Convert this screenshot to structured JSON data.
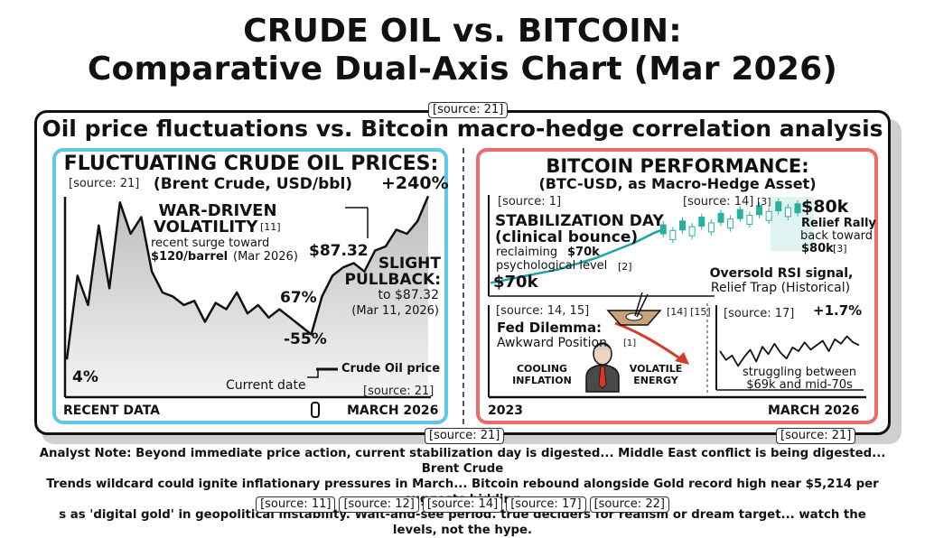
{
  "header": {
    "title_line1": "CRUDE OIL vs. BITCOIN:",
    "title_line2": "Comparative Dual-Axis Chart (Mar 2026)",
    "source_top": "[source: 21]",
    "subtitle": "Oil price fluctuations vs. Bitcoin macro-hedge correlation analysis"
  },
  "left_panel": {
    "heading": "FLUCTUATING CRUDE OIL PRICES:",
    "subheading": "(Brent Crude, USD/bbl)",
    "source_tl": "[source: 21]",
    "pct_top": "+240%",
    "war_title_1": "WAR-DRIVEN",
    "war_title_2": "VOLATILITY",
    "war_ref": "[11]",
    "war_text_1": "recent surge toward",
    "war_price": "$120/barrel",
    "war_date": "(Mar 2026)",
    "price_label": "$87.32",
    "pullback_1": "SLIGHT",
    "pullback_2": "PULLBACK:",
    "pullback_3": "to $87.32",
    "pullback_4": "(Mar 11, 2026)",
    "pct_67": "67%",
    "pct_neg55": "-55%",
    "pct_4": "4%",
    "legend": "Crude Oil price",
    "current_date": "Current date",
    "source_br": "[source: 21]",
    "x_left": "RECENT DATA",
    "x_right": "MARCH 2026"
  },
  "right_panel": {
    "heading": "BITCOIN PERFORMANCE:",
    "subheading": "(BTC-USD, as Macro-Hedge Asset)",
    "source_1": "[source: 1]",
    "source_14": "[source: 14]",
    "ref_3": "[3]",
    "price_80k": "$80k",
    "relief_1": "Relief Rally",
    "relief_2": "back toward",
    "relief_3": "$80k",
    "relief_ref": "[3]",
    "stab_1": "STABILIZATION DAY",
    "stab_2": "(clinical bounce)",
    "stab_3": "reclaiming",
    "stab_3b": "$70k",
    "stab_4": "psychological level",
    "stab_ref": "[2]",
    "price_70k": "$70k",
    "oversold_1": "Oversold RSI signal,",
    "oversold_2": "Relief Trap (Historical)",
    "fed_source": "[source: 14, 15]",
    "fed_refs": "[14] [15]",
    "fed_title": "Fed Dilemma:",
    "fed_text": "Awkward Position",
    "fed_ref": "[1]",
    "cooling": "COOLING",
    "inflation": "INFLATION",
    "volatile": "VOLATILE",
    "energy": "ENERGY",
    "mini_source": "[source: 17]",
    "mini_pct": "+1.7%",
    "mini_text_1": "struggling between",
    "mini_text_2": "$69k and mid-70s",
    "x_left": "2023",
    "x_right": "MARCH 2026",
    "source_br": "[source: 21]"
  },
  "footer": {
    "source_left": "[source: 21]",
    "note_1": "Analyst Note: Beyond immediate price action, current stabilization day is digested... Middle East conflict is being digested... Brent Crude",
    "note_2": "Trends wildcard could ignite inflationary pressures in March... Bitcoin rebound alongside Gold record high near $5,214 per suggests bidding",
    "note_3": "s as 'digital gold' in geopolitical instability. Wait-and-see period. true deciders for realism or dream target... watch the levels, not the hype.",
    "chips": [
      "[source: 11]",
      "[source: 12]",
      "[source: 14]",
      "[source: 17]",
      "[source: 22]"
    ]
  },
  "colors": {
    "oil_panel": "#5ec8e8",
    "btc_panel": "#ee6b6b",
    "btc_line": "#1aa3a3",
    "btc_candles": "#2bb0a0",
    "fed_arrow": "#d63a2a"
  },
  "chart_data": [
    {
      "type": "area",
      "title": "FLUCTUATING CRUDE OIL PRICES:",
      "subtitle": "(Brent Crude, USD/bbl)",
      "series": [
        {
          "name": "Crude Oil price",
          "values": [
            18,
            58,
            44,
            82,
            52,
            93,
            78,
            86,
            60,
            50,
            48,
            44,
            46,
            36,
            45,
            42,
            50,
            40,
            44,
            38,
            42,
            38,
            34,
            30,
            48,
            58,
            62,
            64,
            60,
            70,
            72,
            80,
            78,
            84,
            96
          ]
        }
      ],
      "x_labels": [
        "RECENT DATA",
        "MARCH 2026"
      ],
      "annotations": [
        "+240%",
        "67%",
        "-55%",
        "4%",
        "$87.32"
      ],
      "grid": false,
      "legend": "bottom-right"
    },
    {
      "type": "line",
      "title": "BITCOIN PERFORMANCE:",
      "subtitle": "(BTC-USD, as Macro-Hedge Asset)",
      "x_labels": [
        "2023",
        "MARCH 2026"
      ],
      "annotations": [
        "$70k",
        "$80k"
      ],
      "series": [
        {
          "values": [
            10,
            12,
            14,
            16,
            18,
            20,
            22,
            24,
            27,
            30,
            33,
            36,
            40,
            44,
            48,
            52,
            57,
            62,
            66,
            60,
            70,
            64,
            74,
            68,
            78,
            72,
            82,
            76,
            86,
            80,
            90,
            84,
            88
          ]
        }
      ]
    },
    {
      "type": "line",
      "series": [
        {
          "values": [
            50,
            38,
            44,
            30,
            42,
            52,
            36,
            56,
            46,
            60,
            48,
            40,
            55,
            50,
            62,
            52,
            58,
            64,
            50,
            66,
            60,
            70,
            62,
            58
          ]
        }
      ],
      "annotations": [
        "+1.7%"
      ]
    }
  ]
}
